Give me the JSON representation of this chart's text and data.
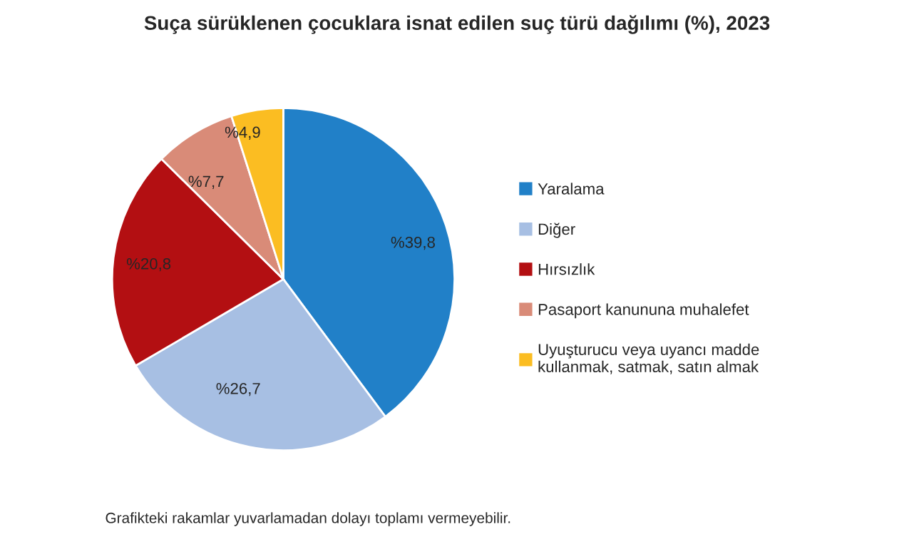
{
  "chart_data": {
    "type": "pie",
    "title": "Suça sürüklenen çocuklara isnat edilen suç türü dağılımı (%), 2023",
    "categories": [
      "Yaralama",
      "Diğer",
      "Hırsızlık",
      "Pasaport kanununa muhalefet",
      "Uyuşturucu veya uyancı madde\nkullanmak, satmak, satın almak"
    ],
    "values": [
      39.8,
      26.7,
      20.8,
      7.7,
      4.9
    ],
    "value_labels": [
      "%39,8",
      "%26,7",
      "%20,8",
      "%7,7",
      "%4,9"
    ],
    "colors": [
      "#2180c8",
      "#a7bfe3",
      "#b30f12",
      "#d98b78",
      "#fbbd22"
    ],
    "legend": "right",
    "annotations": [
      "Grafikteki rakamlar yuvarlamadan dolayı toplamı vermeyebilir."
    ]
  }
}
